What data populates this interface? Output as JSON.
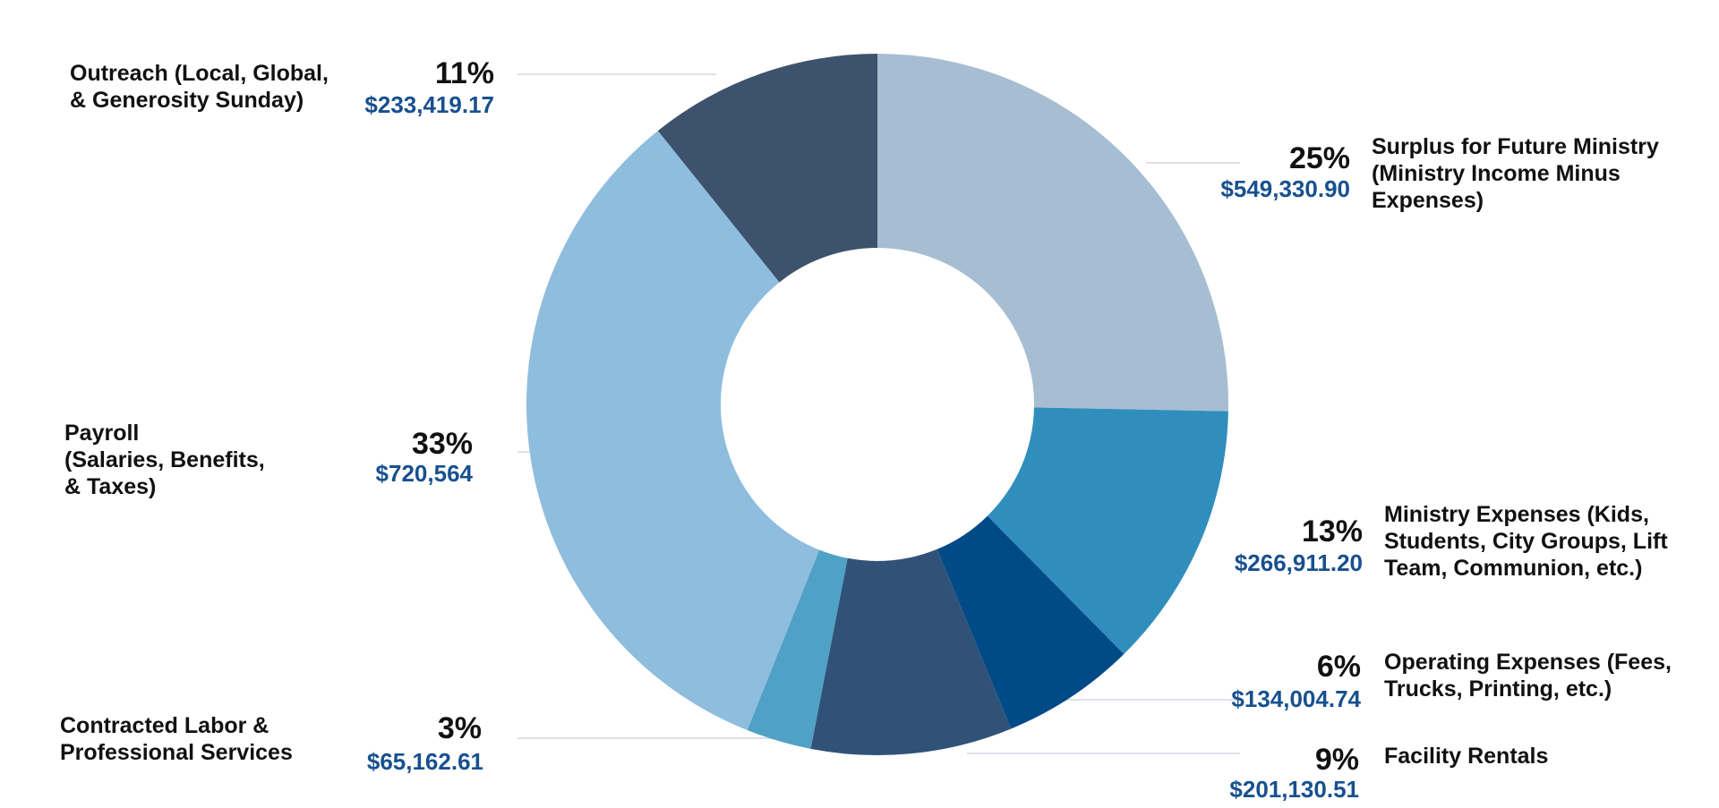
{
  "chart_data": {
    "type": "pie",
    "donut": true,
    "value_color": "#17508f",
    "leader_color": "#dde2e8",
    "slices": [
      {
        "id": "surplus",
        "name_lines": [
          "Surplus for Future Ministry",
          "(Ministry Income Minus",
          "Expenses)"
        ],
        "percent": "25%",
        "amount": "$549,330.90",
        "value": 549330.9,
        "color": "#a7bdd2"
      },
      {
        "id": "ministry-expenses",
        "name_lines": [
          "Ministry Expenses (Kids,",
          "Students, City Groups, Lift",
          "Team, Communion, etc.)"
        ],
        "percent": "13%",
        "amount": "$266,911.20",
        "value": 266911.2,
        "color": "#308ebd"
      },
      {
        "id": "operating-expenses",
        "name_lines": [
          "Operating Expenses (Fees,",
          "Trucks, Printing, etc.)"
        ],
        "percent": "6%",
        "amount": "$134,004.74",
        "value": 134004.74,
        "color": "#004a88"
      },
      {
        "id": "facility-rentals",
        "name_lines": [
          "Facility Rentals"
        ],
        "percent": "9%",
        "amount": "$201,130.51",
        "value": 201130.51,
        "color": "#315278"
      },
      {
        "id": "contracted-labor",
        "name_lines": [
          "Contracted Labor &",
          "Professional Services"
        ],
        "percent": "3%",
        "amount": "$65,162.61",
        "value": 65162.61,
        "color": "#4fa2c6"
      },
      {
        "id": "payroll",
        "name_lines": [
          "Payroll",
          "(Salaries, Benefits,",
          "& Taxes)"
        ],
        "percent": "33%",
        "amount": "$720,564",
        "value": 720564,
        "color": "#8fbdde"
      },
      {
        "id": "outreach",
        "name_lines": [
          "Outreach (Local, Global,",
          "& Generosity Sunday)"
        ],
        "percent": "11%",
        "amount": "$233,419.17",
        "value": 233419.17,
        "color": "#3d526d"
      }
    ]
  }
}
